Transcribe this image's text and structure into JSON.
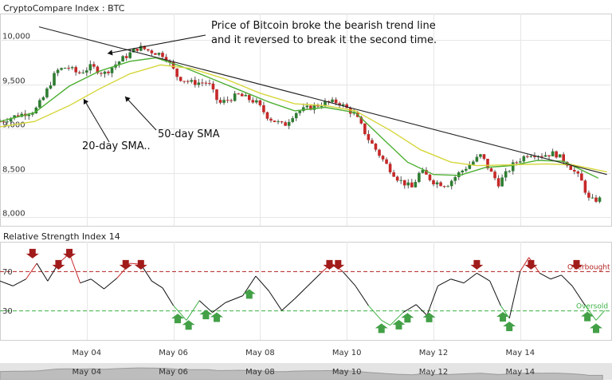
{
  "chart_data": {
    "type": "line",
    "title": "CryptoCompare Index : BTC",
    "price_panel": {
      "type": "candlestick",
      "ylim": [
        7900,
        10300
      ],
      "y_ticks": [
        {
          "value": 10000,
          "label": "10,000"
        },
        {
          "value": 9500,
          "label": "9,500"
        },
        {
          "value": 9000,
          "label": "9,000"
        },
        {
          "value": 8500,
          "label": "8,500"
        },
        {
          "value": 8000,
          "label": "8,000"
        }
      ],
      "x_ticks": [
        "May 04",
        "May 06",
        "May 08",
        "May 10",
        "May 12",
        "May 14"
      ],
      "price_path": [
        {
          "day": 2.0,
          "price": 9080
        },
        {
          "day": 2.4,
          "price": 9150
        },
        {
          "day": 2.8,
          "price": 9200
        },
        {
          "day": 3.0,
          "price": 9350
        },
        {
          "day": 3.3,
          "price": 9650
        },
        {
          "day": 3.55,
          "price": 9700
        },
        {
          "day": 3.8,
          "price": 9620
        },
        {
          "day": 4.1,
          "price": 9700
        },
        {
          "day": 4.4,
          "price": 9620
        },
        {
          "day": 4.8,
          "price": 9780
        },
        {
          "day": 5.2,
          "price": 9920
        },
        {
          "day": 5.5,
          "price": 9870
        },
        {
          "day": 5.8,
          "price": 9830
        },
        {
          "day": 6.1,
          "price": 9580
        },
        {
          "day": 6.4,
          "price": 9520
        },
        {
          "day": 6.8,
          "price": 9520
        },
        {
          "day": 7.05,
          "price": 9280
        },
        {
          "day": 7.5,
          "price": 9380
        },
        {
          "day": 7.9,
          "price": 9300
        },
        {
          "day": 8.2,
          "price": 9120
        },
        {
          "day": 8.55,
          "price": 9030
        },
        {
          "day": 8.8,
          "price": 9180
        },
        {
          "day": 9.1,
          "price": 9230
        },
        {
          "day": 9.5,
          "price": 9290
        },
        {
          "day": 9.8,
          "price": 9300
        },
        {
          "day": 10.2,
          "price": 9150
        },
        {
          "day": 10.5,
          "price": 8880
        },
        {
          "day": 10.9,
          "price": 8600
        },
        {
          "day": 11.2,
          "price": 8420
        },
        {
          "day": 11.5,
          "price": 8330
        },
        {
          "day": 11.7,
          "price": 8520
        },
        {
          "day": 12.0,
          "price": 8400
        },
        {
          "day": 12.3,
          "price": 8360
        },
        {
          "day": 12.6,
          "price": 8500
        },
        {
          "day": 12.9,
          "price": 8620
        },
        {
          "day": 13.1,
          "price": 8700
        },
        {
          "day": 13.3,
          "price": 8520
        },
        {
          "day": 13.5,
          "price": 8380
        },
        {
          "day": 13.85,
          "price": 8600
        },
        {
          "day": 14.2,
          "price": 8720
        },
        {
          "day": 14.5,
          "price": 8700
        },
        {
          "day": 14.8,
          "price": 8720
        },
        {
          "day": 15.1,
          "price": 8600
        },
        {
          "day": 15.4,
          "price": 8420
        },
        {
          "day": 15.6,
          "price": 8180
        },
        {
          "day": 15.8,
          "price": 8200
        }
      ],
      "series": [
        {
          "name": "20-day SMA..",
          "color": "#4daf32",
          "points": [
            {
              "day": 2.0,
              "price": 9080
            },
            {
              "day": 2.8,
              "price": 9180
            },
            {
              "day": 3.6,
              "price": 9480
            },
            {
              "day": 4.3,
              "price": 9650
            },
            {
              "day": 5.0,
              "price": 9760
            },
            {
              "day": 5.6,
              "price": 9800
            },
            {
              "day": 6.2,
              "price": 9700
            },
            {
              "day": 6.9,
              "price": 9560
            },
            {
              "day": 7.5,
              "price": 9440
            },
            {
              "day": 8.2,
              "price": 9300
            },
            {
              "day": 8.8,
              "price": 9200
            },
            {
              "day": 9.5,
              "price": 9240
            },
            {
              "day": 10.2,
              "price": 9180
            },
            {
              "day": 10.8,
              "price": 8900
            },
            {
              "day": 11.4,
              "price": 8620
            },
            {
              "day": 12.0,
              "price": 8480
            },
            {
              "day": 12.6,
              "price": 8470
            },
            {
              "day": 13.2,
              "price": 8560
            },
            {
              "day": 13.8,
              "price": 8580
            },
            {
              "day": 14.4,
              "price": 8640
            },
            {
              "day": 15.0,
              "price": 8630
            },
            {
              "day": 15.8,
              "price": 8440
            }
          ]
        },
        {
          "name": "50-day SMA",
          "color": "#d6d63c",
          "points": [
            {
              "day": 2.0,
              "price": 9020
            },
            {
              "day": 2.8,
              "price": 9080
            },
            {
              "day": 3.6,
              "price": 9260
            },
            {
              "day": 4.3,
              "price": 9450
            },
            {
              "day": 5.0,
              "price": 9620
            },
            {
              "day": 5.7,
              "price": 9720
            },
            {
              "day": 6.4,
              "price": 9680
            },
            {
              "day": 7.2,
              "price": 9560
            },
            {
              "day": 8.0,
              "price": 9400
            },
            {
              "day": 8.8,
              "price": 9280
            },
            {
              "day": 9.5,
              "price": 9260
            },
            {
              "day": 10.2,
              "price": 9200
            },
            {
              "day": 11.0,
              "price": 8980
            },
            {
              "day": 11.7,
              "price": 8760
            },
            {
              "day": 12.4,
              "price": 8620
            },
            {
              "day": 13.0,
              "price": 8580
            },
            {
              "day": 13.8,
              "price": 8590
            },
            {
              "day": 14.6,
              "price": 8600
            },
            {
              "day": 15.2,
              "price": 8590
            },
            {
              "day": 16.0,
              "price": 8510
            }
          ]
        }
      ],
      "trend_line": {
        "from": {
          "day": 2.9,
          "price": 10150
        },
        "to": {
          "day": 16.0,
          "price": 8480
        }
      },
      "annotations": [
        {
          "text": "Price of Bitcoin broke the bearish trend line",
          "line": 1
        },
        {
          "text": "and it reversed to break it the second time.",
          "line": 2
        },
        {
          "text": "20-day SMA..",
          "line": 0
        },
        {
          "text": "50-day SMA",
          "line": 0
        }
      ]
    },
    "rsi_panel": {
      "title": "Relative Strength Index 14",
      "ylim": [
        0,
        100
      ],
      "y_ticks": [
        {
          "value": 70,
          "label": "70"
        },
        {
          "value": 30,
          "label": "30"
        }
      ],
      "overbought": {
        "value": 70,
        "label": "Overbought",
        "color": "#b22222"
      },
      "oversold": {
        "value": 30,
        "label": "Oversold",
        "color": "#3cb043"
      },
      "rsi_path": [
        {
          "day": 2.0,
          "rsi": 60
        },
        {
          "day": 2.3,
          "rsi": 55
        },
        {
          "day": 2.6,
          "rsi": 62
        },
        {
          "day": 2.85,
          "rsi": 78
        },
        {
          "day": 3.1,
          "rsi": 60
        },
        {
          "day": 3.35,
          "rsi": 78
        },
        {
          "day": 3.6,
          "rsi": 88
        },
        {
          "day": 3.85,
          "rsi": 58
        },
        {
          "day": 4.1,
          "rsi": 62
        },
        {
          "day": 4.4,
          "rsi": 52
        },
        {
          "day": 4.7,
          "rsi": 63
        },
        {
          "day": 5.0,
          "rsi": 78
        },
        {
          "day": 5.25,
          "rsi": 77
        },
        {
          "day": 5.5,
          "rsi": 60
        },
        {
          "day": 5.75,
          "rsi": 53
        },
        {
          "day": 6.0,
          "rsi": 35
        },
        {
          "day": 6.3,
          "rsi": 20
        },
        {
          "day": 6.6,
          "rsi": 40
        },
        {
          "day": 6.9,
          "rsi": 28
        },
        {
          "day": 7.2,
          "rsi": 38
        },
        {
          "day": 7.6,
          "rsi": 45
        },
        {
          "day": 7.9,
          "rsi": 65
        },
        {
          "day": 8.2,
          "rsi": 50
        },
        {
          "day": 8.5,
          "rsi": 30
        },
        {
          "day": 8.8,
          "rsi": 42
        },
        {
          "day": 9.1,
          "rsi": 55
        },
        {
          "day": 9.4,
          "rsi": 68
        },
        {
          "day": 9.65,
          "rsi": 78
        },
        {
          "day": 9.9,
          "rsi": 70
        },
        {
          "day": 10.2,
          "rsi": 55
        },
        {
          "day": 10.5,
          "rsi": 35
        },
        {
          "day": 10.8,
          "rsi": 20
        },
        {
          "day": 11.0,
          "rsi": 15
        },
        {
          "day": 11.3,
          "rsi": 28
        },
        {
          "day": 11.6,
          "rsi": 36
        },
        {
          "day": 11.85,
          "rsi": 25
        },
        {
          "day": 12.1,
          "rsi": 55
        },
        {
          "day": 12.4,
          "rsi": 62
        },
        {
          "day": 12.7,
          "rsi": 58
        },
        {
          "day": 13.0,
          "rsi": 68
        },
        {
          "day": 13.3,
          "rsi": 60
        },
        {
          "day": 13.55,
          "rsi": 35
        },
        {
          "day": 13.75,
          "rsi": 22
        },
        {
          "day": 14.0,
          "rsi": 70
        },
        {
          "day": 14.2,
          "rsi": 84
        },
        {
          "day": 14.45,
          "rsi": 68
        },
        {
          "day": 14.7,
          "rsi": 62
        },
        {
          "day": 14.95,
          "rsi": 66
        },
        {
          "day": 15.2,
          "rsi": 55
        },
        {
          "day": 15.5,
          "rsi": 35
        },
        {
          "day": 15.75,
          "rsi": 20
        },
        {
          "day": 15.95,
          "rsi": 30
        }
      ],
      "sell_signals_days": [
        3.35,
        4.9,
        5.25,
        9.6,
        9.8,
        13.0,
        14.25,
        15.3
      ],
      "sell_signals_high_days": [
        2.75,
        3.6
      ],
      "buy_signals_days": [
        6.1,
        6.35,
        6.75,
        7.0,
        7.75,
        10.8,
        11.2,
        11.4,
        11.9,
        13.6,
        13.75,
        15.55,
        15.75
      ]
    },
    "navigator": {
      "x_ticks": [
        "May 04",
        "May 06",
        "May 08",
        "May 10",
        "May 12",
        "May 14"
      ]
    }
  }
}
